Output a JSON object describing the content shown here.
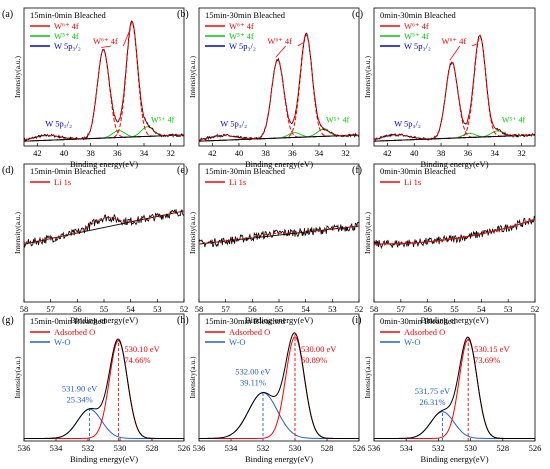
{
  "colors": {
    "data": "#000000",
    "fit": "#ff0000",
    "w6": "#ff0000",
    "w5": "#00cc00",
    "w5p": "#0000dd",
    "adsorbed": "#ff0000",
    "wo": "#1f5fd6",
    "envelope": "#000000",
    "baseline": "#000000"
  },
  "chart_data": [
    {
      "id": "a",
      "panel_label": "(a)",
      "type": "line",
      "kind": "w4f",
      "title": "15min-0min Bleached",
      "xlabel": "Binding energy(eV)",
      "ylabel": "Intensity(a.u.)",
      "xlim": [
        43,
        31
      ],
      "xticks": [
        42,
        40,
        38,
        36,
        34,
        32
      ],
      "legend": [
        "W⁶⁺ 4f",
        "W⁵⁺ 4f",
        "W 5p₃/₂"
      ],
      "annotations": [
        "W⁶⁺ 4f",
        "W 5p₃/₂",
        "W⁵⁺ 4f"
      ],
      "components": [
        {
          "name": "W6+ 4f7/2",
          "center": 34.9,
          "height": 0.83,
          "width": 0.42
        },
        {
          "name": "W6+ 4f5/2",
          "center": 37.05,
          "height": 0.64,
          "width": 0.45
        },
        {
          "name": "W5+ 4f7/2",
          "center": 33.75,
          "height": 0.07,
          "width": 0.45
        },
        {
          "name": "W5+ 4f5/2",
          "center": 35.9,
          "height": 0.05,
          "width": 0.45
        },
        {
          "name": "W 5p3/2",
          "center": 41.3,
          "height": 0.035,
          "width": 1.0
        }
      ]
    },
    {
      "id": "b",
      "panel_label": "(b)",
      "type": "line",
      "kind": "w4f",
      "title": "15min-30min Bleached",
      "xlabel": "Binding energy(eV)",
      "ylabel": "Intensity(a.u.)",
      "xlim": [
        43,
        31
      ],
      "xticks": [
        42,
        40,
        38,
        36,
        34,
        32
      ],
      "legend": [
        "W⁶⁺ 4f",
        "W⁵⁺ 4f",
        "W 5p₃/₂"
      ],
      "annotations": [
        "W⁶⁺ 4f",
        "W 5p₃/₂",
        "W⁵⁺ 4f"
      ],
      "components": [
        {
          "name": "W6+ 4f7/2",
          "center": 34.95,
          "height": 0.74,
          "width": 0.44
        },
        {
          "name": "W6+ 4f5/2",
          "center": 37.1,
          "height": 0.57,
          "width": 0.46
        },
        {
          "name": "W5+ 4f7/2",
          "center": 33.7,
          "height": 0.05,
          "width": 0.45
        },
        {
          "name": "W5+ 4f5/2",
          "center": 35.85,
          "height": 0.035,
          "width": 0.45
        },
        {
          "name": "W 5p3/2",
          "center": 41.3,
          "height": 0.035,
          "width": 1.0
        }
      ]
    },
    {
      "id": "c",
      "panel_label": "(c)",
      "type": "line",
      "kind": "w4f",
      "title": "0min-30min Bleached",
      "xlabel": "Binding energy(eV)",
      "ylabel": "Intensity(a.u.)",
      "xlim": [
        43,
        31
      ],
      "xticks": [
        42,
        40,
        38,
        36,
        34,
        32
      ],
      "legend": [
        "W⁶⁺ 4f",
        "W⁵⁺ 4f",
        "W 5p₃/₂"
      ],
      "annotations": [
        "W⁶⁺ 4f",
        "W 5p₃/₂",
        "W⁵⁺ 4f"
      ],
      "components": [
        {
          "name": "W6+ 4f7/2",
          "center": 35.1,
          "height": 0.73,
          "width": 0.43
        },
        {
          "name": "W6+ 4f5/2",
          "center": 37.2,
          "height": 0.55,
          "width": 0.45
        },
        {
          "name": "W5+ 4f7/2",
          "center": 33.8,
          "height": 0.04,
          "width": 0.45
        },
        {
          "name": "W5+ 4f5/2",
          "center": 35.9,
          "height": 0.03,
          "width": 0.45
        },
        {
          "name": "W 5p3/2",
          "center": 41.4,
          "height": 0.04,
          "width": 1.0
        }
      ]
    },
    {
      "id": "d",
      "panel_label": "(d)",
      "type": "line",
      "kind": "li1s",
      "title": "15min-0min Bleached",
      "xlabel": "Binding energy(eV)",
      "ylabel": "Intensity(a.u.)",
      "xlim": [
        58,
        52
      ],
      "xticks": [
        58,
        57,
        56,
        55,
        54,
        53,
        52
      ],
      "legend": [
        "Li 1s"
      ],
      "baseline": [
        0.42,
        0.66
      ],
      "peak": {
        "center": 55.0,
        "height": 0.07,
        "width": 0.45
      }
    },
    {
      "id": "e",
      "panel_label": "(e)",
      "type": "line",
      "kind": "li1s",
      "title": "15min-30min Bleached",
      "xlabel": "Binding energy(eV)",
      "ylabel": "Intensity(a.u.)",
      "xlim": [
        58,
        52
      ],
      "xticks": [
        58,
        57,
        56,
        55,
        54,
        53,
        52
      ],
      "legend": [
        "Li 1s"
      ],
      "baseline": [
        0.42,
        0.55
      ],
      "peak": {
        "center": 55.3,
        "height": 0.015,
        "width": 0.6
      }
    },
    {
      "id": "f",
      "panel_label": "(f)",
      "type": "line",
      "kind": "li1s",
      "title": "0min-30min Bleached",
      "xlabel": "Binding energy(eV)",
      "ylabel": "Intensity(a.u.)",
      "xlim": [
        58,
        52
      ],
      "xticks": [
        58,
        57,
        56,
        55,
        54,
        53,
        52
      ],
      "legend": [
        "Li 1s"
      ],
      "baseline": [
        0.42,
        0.6
      ],
      "curved": true
    },
    {
      "id": "g",
      "panel_label": "(g)",
      "type": "line",
      "kind": "o1s",
      "title": "15min-0min Bleached",
      "xlabel": "Binding energy(eV)",
      "ylabel": "Intensity(a.u.)",
      "xlim": [
        536,
        526
      ],
      "xticks": [
        536,
        534,
        532,
        530,
        528,
        526
      ],
      "legend": [
        "Adsorbed O",
        "W-O"
      ],
      "peaks": [
        {
          "name": "Adsorbed O",
          "center": 530.1,
          "percent": "74.66%",
          "label_ev": "530.10 eV",
          "height": 0.77,
          "width": 0.56
        },
        {
          "name": "W-O",
          "center": 531.9,
          "percent": "25.34%",
          "label_ev": "531.90 eV",
          "height": 0.23,
          "width": 0.75
        }
      ]
    },
    {
      "id": "h",
      "panel_label": "(h)",
      "type": "line",
      "kind": "o1s",
      "title": "15min-30min Bleached",
      "xlabel": "Binding energy(eV)",
      "ylabel": "Intensity(a.u.)",
      "xlim": [
        536,
        526
      ],
      "xticks": [
        536,
        534,
        532,
        530,
        528,
        526
      ],
      "legend": [
        "Adsorbed O",
        "W-O"
      ],
      "peaks": [
        {
          "name": "Adsorbed O",
          "center": 530.0,
          "percent": "60.89%",
          "label_ev": "530.00 eV",
          "height": 0.8,
          "width": 0.58
        },
        {
          "name": "W-O",
          "center": 532.0,
          "percent": "39.11%",
          "label_ev": "532.00 eV",
          "height": 0.36,
          "width": 0.9
        }
      ]
    },
    {
      "id": "i",
      "panel_label": "(i)",
      "type": "line",
      "kind": "o1s",
      "title": "0min-30min Bleached",
      "xlabel": "Binding energy(eV)",
      "ylabel": "Intensity(a.u.)",
      "xlim": [
        536,
        526
      ],
      "xticks": [
        536,
        534,
        532,
        530,
        528,
        526
      ],
      "legend": [
        "Adsorbed O",
        "W-O"
      ],
      "peaks": [
        {
          "name": "Adsorbed O",
          "center": 530.15,
          "percent": "73.69%",
          "label_ev": "530.15 eV",
          "height": 0.78,
          "width": 0.55
        },
        {
          "name": "W-O",
          "center": 531.75,
          "percent": "26.31%",
          "label_ev": "531.75 eV",
          "height": 0.21,
          "width": 0.72
        }
      ]
    }
  ]
}
